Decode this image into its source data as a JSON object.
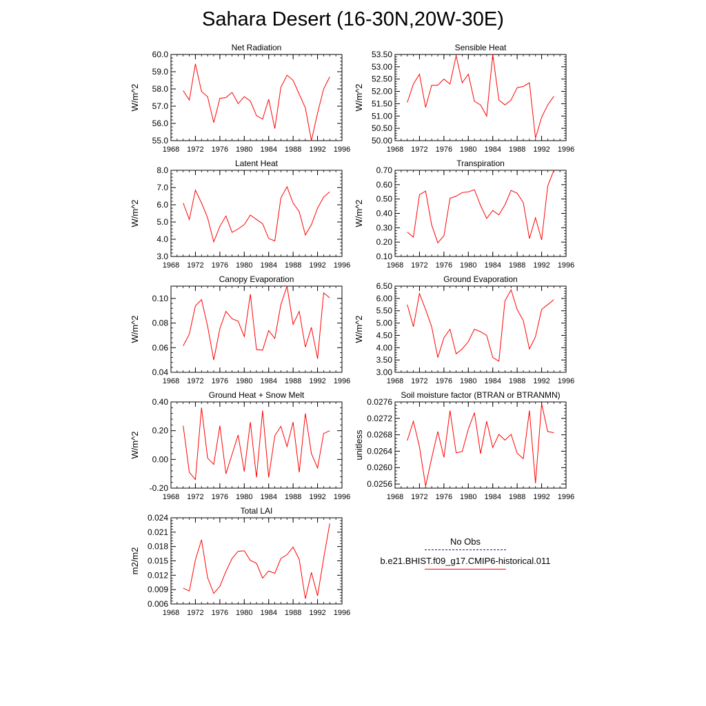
{
  "title": "Sahara Desert (16-30N,20W-30E)",
  "legend": {
    "obs_label": "No Obs",
    "obs_color": "#1a1a8a",
    "model_label": "b.e21.BHIST.f09_g17.CMIP6-historical.011",
    "model_color": "#ff0000"
  },
  "chart_data": [
    {
      "type": "line",
      "title": "Net Radiation",
      "ylabel": "W/m^2",
      "xlim": [
        1968,
        1996
      ],
      "ylim": [
        55.0,
        60.0
      ],
      "xticks": [
        1968,
        1972,
        1976,
        1980,
        1984,
        1988,
        1992,
        1996
      ],
      "xtick_labels": [
        "1968",
        "1972",
        "1976",
        "1980",
        "1984",
        "1988",
        "1992",
        "1996"
      ],
      "yticks": [
        55.0,
        56.0,
        57.0,
        58.0,
        59.0,
        60.0
      ],
      "ytick_labels": [
        "55.0",
        "56.0",
        "57.0",
        "58.0",
        "59.0",
        "60.0"
      ],
      "x": [
        1970,
        1971,
        1972,
        1973,
        1974,
        1975,
        1976,
        1977,
        1978,
        1979,
        1980,
        1981,
        1982,
        1983,
        1984,
        1985,
        1986,
        1987,
        1988,
        1989,
        1990,
        1991,
        1992,
        1993,
        1994
      ],
      "y": [
        57.9,
        57.35,
        59.45,
        57.85,
        57.55,
        56.05,
        57.45,
        57.5,
        57.8,
        57.15,
        57.55,
        57.3,
        56.45,
        56.25,
        57.4,
        55.7,
        58.1,
        58.8,
        58.5,
        57.7,
        56.9,
        55.0,
        56.6,
        58.0,
        58.7
      ]
    },
    {
      "type": "line",
      "title": "Sensible Heat",
      "ylabel": "W/m^2",
      "xlim": [
        1968,
        1996
      ],
      "ylim": [
        50.0,
        53.5
      ],
      "xticks": [
        1968,
        1972,
        1976,
        1980,
        1984,
        1988,
        1992,
        1996
      ],
      "xtick_labels": [
        "1968",
        "1972",
        "1976",
        "1980",
        "1984",
        "1988",
        "1992",
        "1996"
      ],
      "yticks": [
        50.0,
        50.5,
        51.0,
        51.5,
        52.0,
        52.5,
        53.0,
        53.5
      ],
      "ytick_labels": [
        "50.00",
        "50.50",
        "51.00",
        "51.50",
        "52.00",
        "52.50",
        "53.00",
        "53.50"
      ],
      "x": [
        1970,
        1971,
        1972,
        1973,
        1974,
        1975,
        1976,
        1977,
        1978,
        1979,
        1980,
        1981,
        1982,
        1983,
        1984,
        1985,
        1986,
        1987,
        1988,
        1989,
        1990,
        1991,
        1992,
        1993,
        1994
      ],
      "y": [
        51.55,
        52.3,
        52.7,
        51.35,
        52.25,
        52.25,
        52.5,
        52.3,
        53.45,
        52.35,
        52.7,
        51.6,
        51.45,
        51.0,
        53.5,
        51.65,
        51.45,
        51.65,
        52.15,
        52.2,
        52.35,
        50.1,
        50.95,
        51.45,
        51.8
      ]
    },
    {
      "type": "line",
      "title": "Latent Heat",
      "ylabel": "W/m^2",
      "xlim": [
        1968,
        1996
      ],
      "ylim": [
        3.0,
        8.0
      ],
      "xticks": [
        1968,
        1972,
        1976,
        1980,
        1984,
        1988,
        1992,
        1996
      ],
      "xtick_labels": [
        "1968",
        "1972",
        "1976",
        "1980",
        "1984",
        "1988",
        "1992",
        "1996"
      ],
      "yticks": [
        3.0,
        4.0,
        5.0,
        6.0,
        7.0,
        8.0
      ],
      "ytick_labels": [
        "3.0",
        "4.0",
        "5.0",
        "6.0",
        "7.0",
        "8.0"
      ],
      "x": [
        1970,
        1971,
        1972,
        1973,
        1974,
        1975,
        1976,
        1977,
        1978,
        1979,
        1980,
        1981,
        1982,
        1983,
        1984,
        1985,
        1986,
        1987,
        1988,
        1989,
        1990,
        1991,
        1992,
        1993,
        1994
      ],
      "y": [
        6.1,
        5.15,
        6.85,
        6.1,
        5.25,
        3.85,
        4.75,
        5.35,
        4.4,
        4.6,
        4.85,
        5.4,
        5.15,
        4.9,
        4.05,
        3.9,
        6.4,
        7.05,
        6.1,
        5.6,
        4.25,
        4.85,
        5.8,
        6.45,
        6.75
      ]
    },
    {
      "type": "line",
      "title": "Transpiration",
      "ylabel": "W/m^2",
      "xlim": [
        1968,
        1996
      ],
      "ylim": [
        0.1,
        0.7
      ],
      "xticks": [
        1968,
        1972,
        1976,
        1980,
        1984,
        1988,
        1992,
        1996
      ],
      "xtick_labels": [
        "1968",
        "1972",
        "1976",
        "1980",
        "1984",
        "1988",
        "1992",
        "1996"
      ],
      "yticks": [
        0.1,
        0.2,
        0.3,
        0.4,
        0.5,
        0.6,
        0.7
      ],
      "ytick_labels": [
        "0.10",
        "0.20",
        "0.30",
        "0.40",
        "0.50",
        "0.60",
        "0.70"
      ],
      "x": [
        1970,
        1971,
        1972,
        1973,
        1974,
        1975,
        1976,
        1977,
        1978,
        1979,
        1980,
        1981,
        1982,
        1983,
        1984,
        1985,
        1986,
        1987,
        1988,
        1989,
        1990,
        1991,
        1992,
        1993,
        1994
      ],
      "y": [
        0.27,
        0.235,
        0.53,
        0.555,
        0.32,
        0.195,
        0.245,
        0.505,
        0.52,
        0.545,
        0.55,
        0.565,
        0.455,
        0.365,
        0.42,
        0.39,
        0.46,
        0.56,
        0.54,
        0.475,
        0.225,
        0.37,
        0.215,
        0.59,
        0.7
      ]
    },
    {
      "type": "line",
      "title": "Canopy Evaporation",
      "ylabel": "W/m^2",
      "xlim": [
        1968,
        1996
      ],
      "ylim": [
        0.04,
        0.11
      ],
      "xticks": [
        1968,
        1972,
        1976,
        1980,
        1984,
        1988,
        1992,
        1996
      ],
      "xtick_labels": [
        "1968",
        "1972",
        "1976",
        "1980",
        "1984",
        "1988",
        "1992",
        "1996"
      ],
      "yticks": [
        0.04,
        0.06,
        0.08,
        0.1
      ],
      "ytick_labels": [
        "0.04",
        "0.06",
        "0.08",
        "0.10"
      ],
      "x": [
        1970,
        1971,
        1972,
        1973,
        1974,
        1975,
        1976,
        1977,
        1978,
        1979,
        1980,
        1981,
        1982,
        1983,
        1984,
        1985,
        1986,
        1987,
        1988,
        1989,
        1990,
        1991,
        1992,
        1993,
        1994
      ],
      "y": [
        0.0615,
        0.071,
        0.094,
        0.099,
        0.0775,
        0.05,
        0.0755,
        0.0895,
        0.0835,
        0.0815,
        0.069,
        0.1035,
        0.0585,
        0.058,
        0.074,
        0.0675,
        0.095,
        0.11,
        0.079,
        0.0895,
        0.0605,
        0.0765,
        0.051,
        0.1045,
        0.1005
      ]
    },
    {
      "type": "line",
      "title": "Ground Evaporation",
      "ylabel": "W/m^2",
      "xlim": [
        1968,
        1996
      ],
      "ylim": [
        3.0,
        6.5
      ],
      "xticks": [
        1968,
        1972,
        1976,
        1980,
        1984,
        1988,
        1992,
        1996
      ],
      "xtick_labels": [
        "1968",
        "1972",
        "1976",
        "1980",
        "1984",
        "1988",
        "1992",
        "1996"
      ],
      "yticks": [
        3.0,
        3.5,
        4.0,
        4.5,
        5.0,
        5.5,
        6.0,
        6.5
      ],
      "ytick_labels": [
        "3.00",
        "3.50",
        "4.00",
        "4.50",
        "5.00",
        "5.50",
        "6.00",
        "6.50"
      ],
      "x": [
        1970,
        1971,
        1972,
        1973,
        1974,
        1975,
        1976,
        1977,
        1978,
        1979,
        1980,
        1981,
        1982,
        1983,
        1984,
        1985,
        1986,
        1987,
        1988,
        1989,
        1990,
        1991,
        1992,
        1993,
        1994
      ],
      "y": [
        5.75,
        4.85,
        6.2,
        5.55,
        4.85,
        3.6,
        4.4,
        4.75,
        3.75,
        3.95,
        4.25,
        4.75,
        4.65,
        4.5,
        3.6,
        3.45,
        5.9,
        6.35,
        5.55,
        5.1,
        3.95,
        4.45,
        5.55,
        5.75,
        5.95
      ]
    },
    {
      "type": "line",
      "title": "Ground Heat + Snow Melt",
      "ylabel": "W/m^2",
      "xlim": [
        1968,
        1996
      ],
      "ylim": [
        -0.2,
        0.4
      ],
      "xticks": [
        1968,
        1972,
        1976,
        1980,
        1984,
        1988,
        1992,
        1996
      ],
      "xtick_labels": [
        "1968",
        "1972",
        "1976",
        "1980",
        "1984",
        "1988",
        "1992",
        "1996"
      ],
      "yticks": [
        -0.2,
        0.0,
        0.2,
        0.4
      ],
      "ytick_labels": [
        "-0.20",
        "0.00",
        "0.20",
        "0.40"
      ],
      "x": [
        1970,
        1971,
        1972,
        1973,
        1974,
        1975,
        1976,
        1977,
        1978,
        1979,
        1980,
        1981,
        1982,
        1983,
        1984,
        1985,
        1986,
        1987,
        1988,
        1989,
        1990,
        1991,
        1992,
        1993,
        1994
      ],
      "y": [
        0.235,
        -0.09,
        -0.14,
        0.36,
        0.01,
        -0.035,
        0.235,
        -0.1,
        0.035,
        0.17,
        -0.085,
        0.26,
        -0.125,
        0.34,
        -0.125,
        0.165,
        0.23,
        0.09,
        0.26,
        -0.09,
        0.32,
        0.04,
        -0.06,
        0.18,
        0.2
      ]
    },
    {
      "type": "line",
      "title": "Soil moisture factor (BTRAN or BTRANMN)",
      "ylabel": "unitless",
      "xlim": [
        1968,
        1996
      ],
      "ylim": [
        0.0255,
        0.0276
      ],
      "xticks": [
        1968,
        1972,
        1976,
        1980,
        1984,
        1988,
        1992,
        1996
      ],
      "xtick_labels": [
        "1968",
        "1972",
        "1976",
        "1980",
        "1984",
        "1988",
        "1992",
        "1996"
      ],
      "yticks": [
        0.0256,
        0.026,
        0.0264,
        0.0268,
        0.0272,
        0.0276
      ],
      "ytick_labels": [
        "0.0256",
        "0.0260",
        "0.0264",
        "0.0268",
        "0.0272",
        "0.0276"
      ],
      "x": [
        1970,
        1971,
        1972,
        1973,
        1974,
        1975,
        1976,
        1977,
        1978,
        1979,
        1980,
        1981,
        1982,
        1983,
        1984,
        1985,
        1986,
        1987,
        1988,
        1989,
        1990,
        1991,
        1992,
        1993,
        1994
      ],
      "y": [
        0.02666,
        0.02713,
        0.02651,
        0.02555,
        0.02623,
        0.02688,
        0.02625,
        0.02739,
        0.02636,
        0.02639,
        0.02694,
        0.02734,
        0.02634,
        0.02713,
        0.02649,
        0.02681,
        0.02667,
        0.02681,
        0.02635,
        0.02622,
        0.02739,
        0.02562,
        0.02756,
        0.02688,
        0.02685
      ]
    },
    {
      "type": "line",
      "title": "Total LAI",
      "ylabel": "m2/m2",
      "xlim": [
        1968,
        1996
      ],
      "ylim": [
        0.006,
        0.024
      ],
      "xticks": [
        1968,
        1972,
        1976,
        1980,
        1984,
        1988,
        1992,
        1996
      ],
      "xtick_labels": [
        "1968",
        "1972",
        "1976",
        "1980",
        "1984",
        "1988",
        "1992",
        "1996"
      ],
      "yticks": [
        0.006,
        0.009,
        0.012,
        0.015,
        0.018,
        0.021,
        0.024
      ],
      "ytick_labels": [
        "0.006",
        "0.009",
        "0.012",
        "0.015",
        "0.018",
        "0.021",
        "0.024"
      ],
      "x": [
        1970,
        1971,
        1972,
        1973,
        1974,
        1975,
        1976,
        1977,
        1978,
        1979,
        1980,
        1981,
        1982,
        1983,
        1984,
        1985,
        1986,
        1987,
        1988,
        1989,
        1990,
        1991,
        1992,
        1993,
        1994
      ],
      "y": [
        0.0093,
        0.0087,
        0.0152,
        0.0194,
        0.0115,
        0.0082,
        0.0097,
        0.0128,
        0.0155,
        0.017,
        0.0171,
        0.0151,
        0.0145,
        0.0114,
        0.0129,
        0.0124,
        0.0155,
        0.0163,
        0.0179,
        0.0153,
        0.0071,
        0.0126,
        0.0077,
        0.0155,
        0.0228
      ]
    }
  ]
}
